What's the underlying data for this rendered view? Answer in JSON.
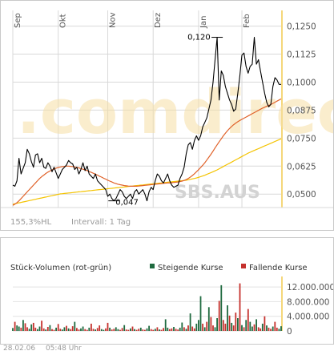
{
  "watermark": ".comdirect",
  "symbol": "SBS.AUS",
  "hl_label": "155,3%HL",
  "interval_label": "Intervall: 1 Tag",
  "footer": {
    "date": "28.02.06",
    "time": "05:48 Uhr"
  },
  "colors": {
    "price": "#000000",
    "ma_short": "#e0622a",
    "ma_long": "#f4c300",
    "vol_up": "#1f6a3f",
    "vol_down": "#c5312d",
    "grid": "#d9d9d9",
    "axis_accent": "#f5d77a",
    "watermark": "#f6dfa6"
  },
  "chart_data": [
    {
      "type": "line",
      "title": "",
      "x_tick_labels": [
        "Sep",
        "Okt",
        "Nov",
        "Dez",
        "Jan",
        "Feb"
      ],
      "y_tick_labels": [
        "0,1250",
        "0,1125",
        "0,1000",
        "0,0875",
        "0,0750",
        "0,0625",
        "0,0500"
      ],
      "ylim": [
        0.044,
        0.132
      ],
      "x_count": 131,
      "grid": true,
      "annotations": [
        {
          "label": "0,120",
          "x": 99,
          "y": 0.12
        },
        {
          "label": "0,047",
          "x": 49,
          "y": 0.047
        }
      ],
      "series": [
        {
          "key": "price",
          "values": [
            0.054,
            0.0535,
            0.056,
            0.066,
            0.059,
            0.0615,
            0.064,
            0.07,
            0.068,
            0.0645,
            0.062,
            0.0675,
            0.068,
            0.064,
            0.066,
            0.062,
            0.0615,
            0.064,
            0.0625,
            0.06,
            0.062,
            0.0595,
            0.057,
            0.059,
            0.061,
            0.062,
            0.063,
            0.065,
            0.064,
            0.0635,
            0.061,
            0.062,
            0.059,
            0.061,
            0.064,
            0.0605,
            0.0625,
            0.059,
            0.058,
            0.057,
            0.059,
            0.056,
            0.055,
            0.054,
            0.053,
            0.052,
            0.049,
            0.05,
            0.048,
            0.047,
            0.048,
            0.05,
            0.052,
            0.051,
            0.049,
            0.048,
            0.049,
            0.05,
            0.048,
            0.051,
            0.052,
            0.05,
            0.051,
            0.052,
            0.05,
            0.047,
            0.051,
            0.053,
            0.052,
            0.056,
            0.059,
            0.058,
            0.056,
            0.055,
            0.057,
            0.059,
            0.056,
            0.054,
            0.053,
            0.0535,
            0.054,
            0.057,
            0.059,
            0.062,
            0.068,
            0.072,
            0.073,
            0.07,
            0.074,
            0.076,
            0.074,
            0.076,
            0.08,
            0.082,
            0.084,
            0.088,
            0.092,
            0.1,
            0.11,
            0.12,
            0.092,
            0.105,
            0.103,
            0.098,
            0.095,
            0.092,
            0.09,
            0.087,
            0.088,
            0.095,
            0.103,
            0.112,
            0.113,
            0.107,
            0.104,
            0.107,
            0.108,
            0.12,
            0.108,
            0.11,
            0.105,
            0.1,
            0.095,
            0.091,
            0.089,
            0.09,
            0.098,
            0.102,
            0.101,
            0.099,
            0.099
          ]
        },
        {
          "key": "ma_short",
          "values": [
            0.045,
            0.0455,
            0.0462,
            0.047,
            0.048,
            0.049,
            0.05,
            0.051,
            0.052,
            0.053,
            0.054,
            0.055,
            0.056,
            0.057,
            0.0578,
            0.0585,
            0.0592,
            0.0598,
            0.0603,
            0.0608,
            0.0612,
            0.0616,
            0.0619,
            0.0621,
            0.0623,
            0.0624,
            0.0625,
            0.0625,
            0.0624,
            0.0623,
            0.0621,
            0.0619,
            0.0617,
            0.0614,
            0.0611,
            0.0608,
            0.0605,
            0.0601,
            0.0597,
            0.0593,
            0.0589,
            0.0585,
            0.058,
            0.0576,
            0.0571,
            0.0567,
            0.0562,
            0.0558,
            0.0554,
            0.055,
            0.0547,
            0.0544,
            0.0542,
            0.054,
            0.0538,
            0.0537,
            0.0536,
            0.0535,
            0.0535,
            0.0535,
            0.0535,
            0.0536,
            0.0537,
            0.0538,
            0.0539,
            0.054,
            0.0541,
            0.0542,
            0.0543,
            0.0544,
            0.0545,
            0.0546,
            0.0547,
            0.0548,
            0.0549,
            0.055,
            0.055,
            0.0551,
            0.0552,
            0.0553,
            0.0554,
            0.0556,
            0.0558,
            0.0561,
            0.0565,
            0.057,
            0.0576,
            0.0583,
            0.0591,
            0.06,
            0.0609,
            0.0619,
            0.0629,
            0.064,
            0.0652,
            0.0665,
            0.0678,
            0.0692,
            0.0706,
            0.072,
            0.0734,
            0.0747,
            0.076,
            0.0772,
            0.0783,
            0.0793,
            0.0802,
            0.081,
            0.0817,
            0.0823,
            0.0829,
            0.0834,
            0.0839,
            0.0844,
            0.0849,
            0.0854,
            0.0859,
            0.0864,
            0.0869,
            0.0874,
            0.0879,
            0.0884,
            0.0888,
            0.0892,
            0.0896,
            0.09,
            0.0905,
            0.091,
            0.0915,
            0.092,
            0.0925
          ]
        },
        {
          "key": "ma_long",
          "values": [
            0.0455,
            0.0457,
            0.0459,
            0.0461,
            0.0463,
            0.0465,
            0.0467,
            0.0469,
            0.0471,
            0.0473,
            0.0475,
            0.0477,
            0.0479,
            0.0481,
            0.0483,
            0.0485,
            0.0487,
            0.0489,
            0.0491,
            0.0493,
            0.0495,
            0.0497,
            0.0499,
            0.0501,
            0.0502,
            0.0503,
            0.0504,
            0.0505,
            0.0506,
            0.0507,
            0.0508,
            0.0509,
            0.051,
            0.0511,
            0.0512,
            0.0513,
            0.0514,
            0.0515,
            0.0516,
            0.0517,
            0.0518,
            0.0519,
            0.052,
            0.0521,
            0.0522,
            0.0523,
            0.0524,
            0.0525,
            0.0526,
            0.0527,
            0.0528,
            0.0529,
            0.053,
            0.0531,
            0.0532,
            0.0533,
            0.0534,
            0.0535,
            0.0536,
            0.0537,
            0.0538,
            0.0539,
            0.054,
            0.0541,
            0.0542,
            0.0543,
            0.0544,
            0.0545,
            0.0546,
            0.0547,
            0.0548,
            0.0549,
            0.055,
            0.0551,
            0.0552,
            0.0553,
            0.0554,
            0.0555,
            0.0556,
            0.0557,
            0.0558,
            0.0559,
            0.056,
            0.0561,
            0.0562,
            0.0564,
            0.0566,
            0.0568,
            0.057,
            0.0572,
            0.0575,
            0.0578,
            0.0581,
            0.0584,
            0.0588,
            0.0592,
            0.0596,
            0.06,
            0.0604,
            0.0608,
            0.0613,
            0.0618,
            0.0623,
            0.0628,
            0.0633,
            0.0638,
            0.0643,
            0.0648,
            0.0653,
            0.0658,
            0.0663,
            0.0668,
            0.0673,
            0.0678,
            0.0683,
            0.0687,
            0.0691,
            0.0695,
            0.0699,
            0.0703,
            0.0707,
            0.0711,
            0.0715,
            0.0719,
            0.0723,
            0.0727,
            0.0731,
            0.0735,
            0.0739,
            0.0743,
            0.0747
          ]
        }
      ]
    },
    {
      "type": "bar",
      "title": "Stück-Volumen (rot-grün)",
      "legend": [
        {
          "label": "Steigende Kurse",
          "color": "#1f6a3f"
        },
        {
          "label": "Fallende Kurse",
          "color": "#c5312d"
        }
      ],
      "y_tick_labels": [
        "12.000.000",
        "8.000.000",
        "4.000.000",
        "0"
      ],
      "ylim": [
        0,
        14000000
      ],
      "x_count": 131,
      "values": [
        800000,
        2500000,
        1500000,
        1200000,
        900000,
        3000000,
        2100000,
        1000000,
        600000,
        1800000,
        2200000,
        900000,
        500000,
        1200000,
        2800000,
        700000,
        400000,
        1100000,
        1600000,
        500000,
        300000,
        900000,
        1900000,
        600000,
        400000,
        1000000,
        1400000,
        700000,
        500000,
        1300000,
        2500000,
        800000,
        400000,
        700000,
        1200000,
        500000,
        300000,
        900000,
        2000000,
        600000,
        400000,
        800000,
        1500000,
        500000,
        300000,
        700000,
        2200000,
        900000,
        400000,
        600000,
        1000000,
        500000,
        300000,
        800000,
        1600000,
        400000,
        300000,
        700000,
        1200000,
        500000,
        300000,
        600000,
        900000,
        400000,
        300000,
        700000,
        1400000,
        500000,
        300000,
        600000,
        1000000,
        400000,
        300000,
        800000,
        3200000,
        900000,
        500000,
        700000,
        1100000,
        600000,
        400000,
        900000,
        2300000,
        1000000,
        600000,
        1500000,
        4800000,
        1200000,
        700000,
        2000000,
        3000000,
        9500000,
        2000000,
        1000000,
        2500000,
        6500000,
        3800000,
        1500000,
        1000000,
        3500000,
        8200000,
        12500000,
        3000000,
        2000000,
        7000000,
        4200000,
        2200000,
        1500000,
        5000000,
        3500000,
        13000000,
        1600000,
        1000000,
        3000000,
        6000000,
        2500000,
        1200000,
        1800000,
        3200000,
        1000000,
        700000,
        2000000,
        4000000,
        1500000,
        900000,
        600000,
        1200000,
        2500000,
        900000,
        600000,
        1300000
      ],
      "up": [
        1,
        0,
        1,
        1,
        0,
        1,
        0,
        0,
        1,
        1,
        0,
        0,
        1,
        1,
        0,
        0,
        1,
        0,
        1,
        0,
        0,
        1,
        0,
        0,
        1,
        1,
        0,
        1,
        0,
        0,
        1,
        0,
        0,
        1,
        1,
        0,
        0,
        1,
        0,
        0,
        1,
        0,
        0,
        1,
        1,
        0,
        0,
        1,
        0,
        0,
        1,
        1,
        0,
        0,
        1,
        0,
        0,
        1,
        0,
        1,
        0,
        0,
        1,
        0,
        0,
        1,
        1,
        0,
        0,
        1,
        0,
        1,
        0,
        0,
        1,
        1,
        0,
        0,
        1,
        0,
        0,
        1,
        1,
        0,
        1,
        0,
        1,
        0,
        0,
        1,
        1,
        1,
        0,
        1,
        0,
        1,
        0,
        0,
        1,
        1,
        0,
        1,
        0,
        0,
        1,
        0,
        1,
        0,
        0,
        1,
        0,
        1,
        0,
        1,
        0,
        1,
        1,
        0,
        1,
        0,
        0,
        1,
        0,
        1,
        0,
        0,
        1,
        0,
        0,
        1,
        1
      ]
    }
  ]
}
